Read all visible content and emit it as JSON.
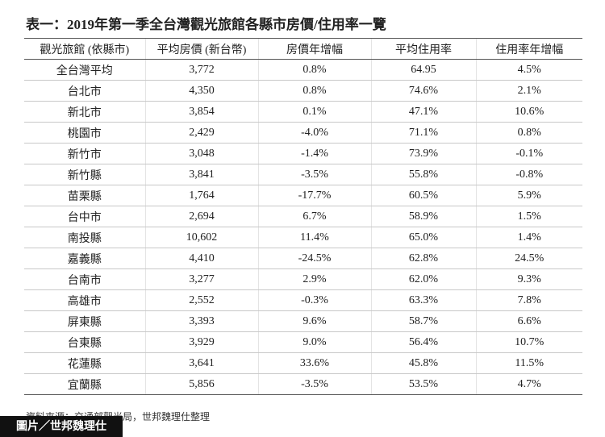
{
  "title": "表一：2019年第一季全台灣觀光旅館各縣市房價/住用率一覽",
  "table": {
    "header": [
      "觀光旅館 (依縣市)",
      "平均房價 (新台幣)",
      "房價年增幅",
      "平均住用率",
      "住用率年增幅"
    ],
    "rows": [
      [
        "全台灣平均",
        "3,772",
        "0.8%",
        "64.95",
        "4.5%"
      ],
      [
        "台北市",
        "4,350",
        "0.8%",
        "74.6%",
        "2.1%"
      ],
      [
        "新北市",
        "3,854",
        "0.1%",
        "47.1%",
        "10.6%"
      ],
      [
        "桃園市",
        "2,429",
        "-4.0%",
        "71.1%",
        "0.8%"
      ],
      [
        "新竹市",
        "3,048",
        "-1.4%",
        "73.9%",
        "-0.1%"
      ],
      [
        "新竹縣",
        "3,841",
        "-3.5%",
        "55.8%",
        "-0.8%"
      ],
      [
        "苗栗縣",
        "1,764",
        "-17.7%",
        "60.5%",
        "5.9%"
      ],
      [
        "台中市",
        "2,694",
        "6.7%",
        "58.9%",
        "1.5%"
      ],
      [
        "南投縣",
        "10,602",
        "11.4%",
        "65.0%",
        "1.4%"
      ],
      [
        "嘉義縣",
        "4,410",
        "-24.5%",
        "62.8%",
        "24.5%"
      ],
      [
        "台南市",
        "3,277",
        "2.9%",
        "62.0%",
        "9.3%"
      ],
      [
        "高雄市",
        "2,552",
        "-0.3%",
        "63.3%",
        "7.8%"
      ],
      [
        "屏東縣",
        "3,393",
        "9.6%",
        "58.7%",
        "6.6%"
      ],
      [
        "台東縣",
        "3,929",
        "9.0%",
        "56.4%",
        "10.7%"
      ],
      [
        "花蓮縣",
        "3,641",
        "33.6%",
        "45.8%",
        "11.5%"
      ],
      [
        "宜蘭縣",
        "5,856",
        "-3.5%",
        "53.5%",
        "4.7%"
      ]
    ]
  },
  "source": "資料來源：交通部觀光局，世邦魏理仕整理",
  "credit": "圖片／世邦魏理仕"
}
